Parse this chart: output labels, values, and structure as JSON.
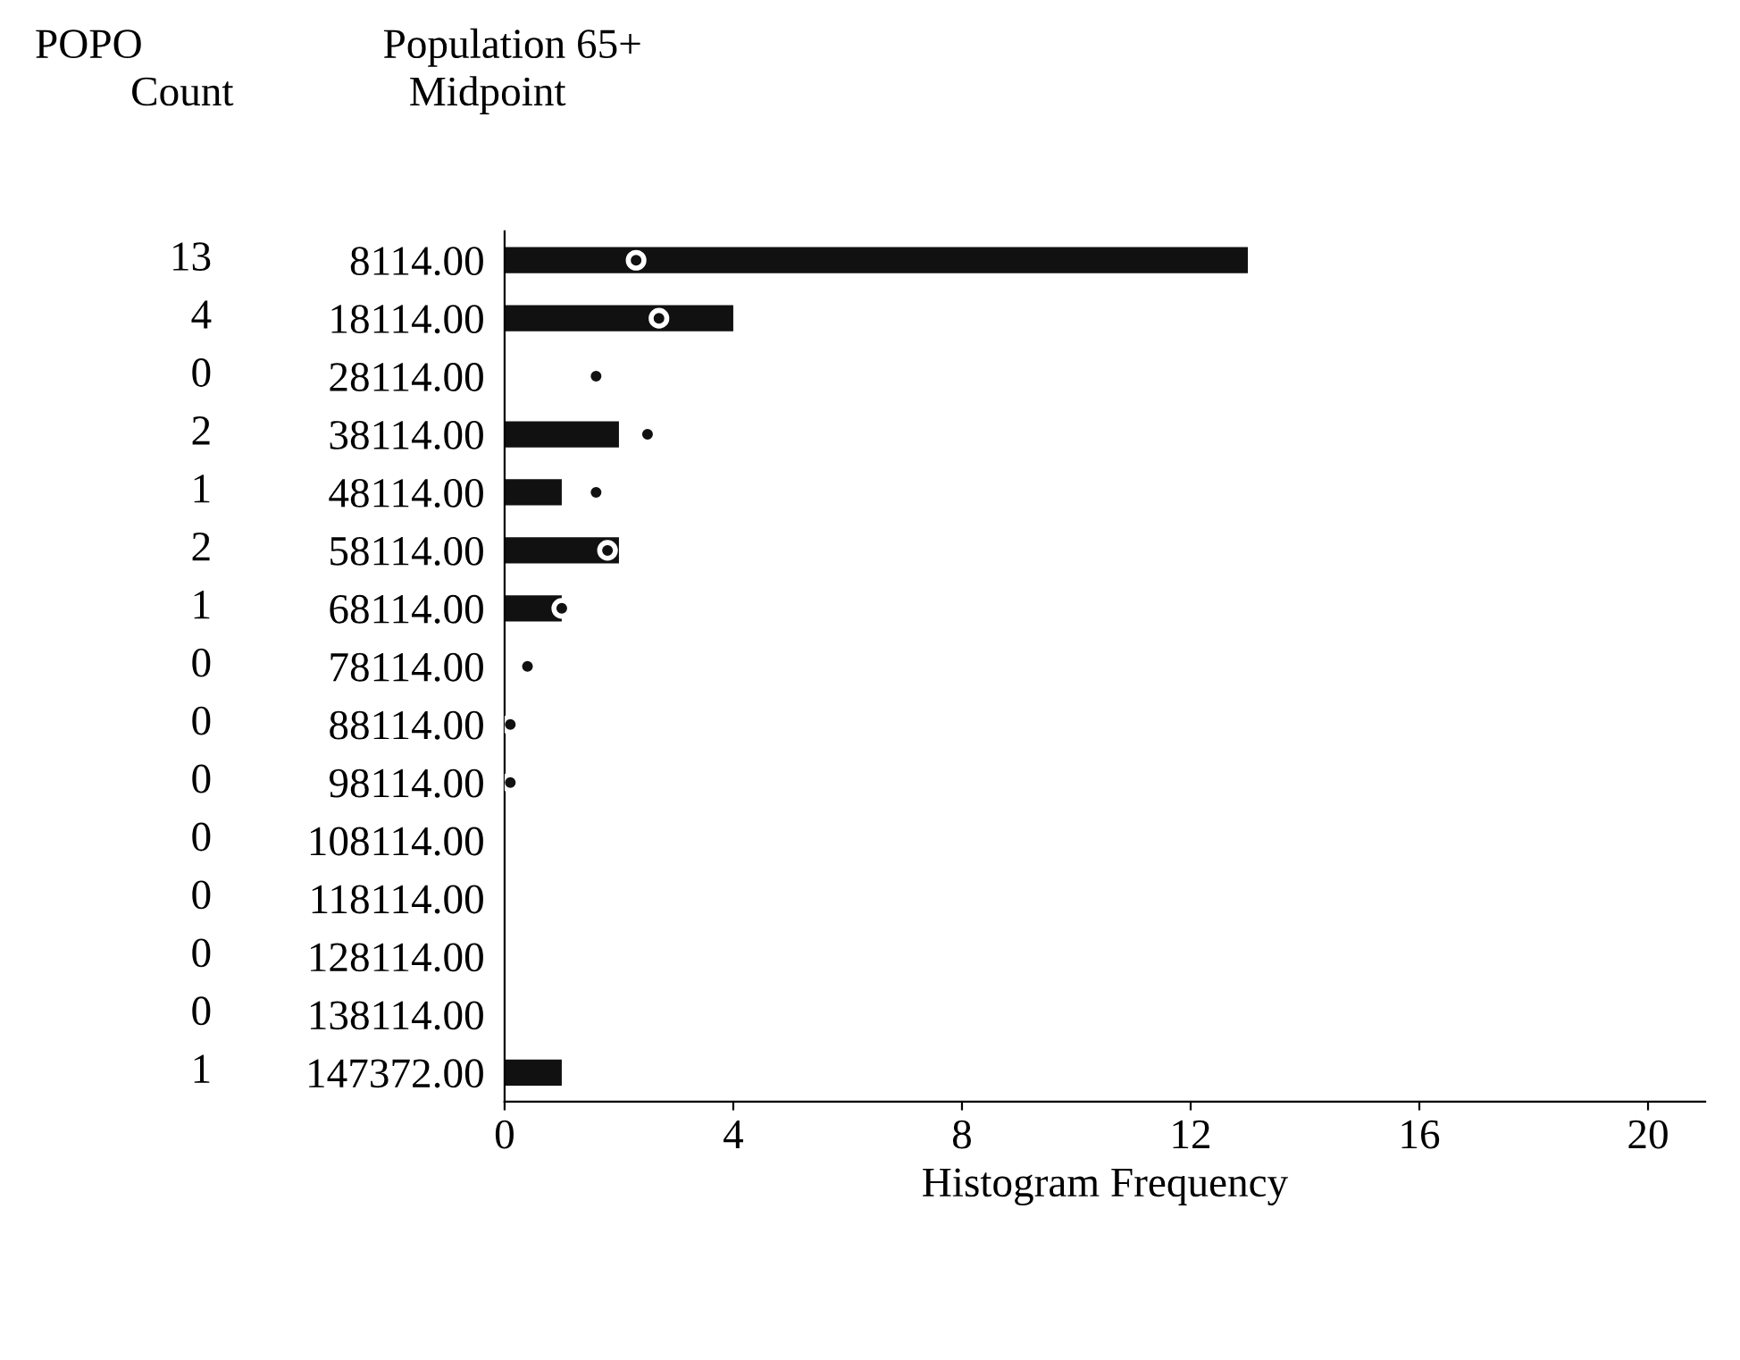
{
  "chart_data": {
    "type": "bar",
    "orientation": "horizontal",
    "xlabel": "Histogram Frequency",
    "annotations": [
      "POPO",
      "Count",
      "Population 65+",
      "Midpoint"
    ],
    "categories": [
      "8114.00",
      "18114.00",
      "28114.00",
      "38114.00",
      "48114.00",
      "58114.00",
      "68114.00",
      "78114.00",
      "88114.00",
      "98114.00",
      "108114.00",
      "118114.00",
      "128114.00",
      "138114.00",
      "147372.00"
    ],
    "series": [
      {
        "color": "#111111",
        "values": [
          13,
          4,
          0,
          2,
          1,
          2,
          1,
          0,
          0,
          0,
          0,
          0,
          0,
          0,
          1
        ],
        "value_labels": [
          "13",
          "4",
          "0",
          "2",
          "1",
          "2",
          "1",
          "0",
          "0",
          "0",
          "0",
          "0",
          "0",
          "0",
          "1"
        ]
      },
      {
        "type": "scatter",
        "color": "#111111",
        "values": [
          2.3,
          2.7,
          1.6,
          2.5,
          1.6,
          1.8,
          1.0,
          0.4,
          0.1,
          0.1,
          null,
          null,
          null,
          null,
          null
        ]
      }
    ],
    "xlim": [
      0,
      21
    ],
    "xticks": [
      0,
      4,
      8,
      12,
      16,
      20
    ],
    "grid": false,
    "legend": false,
    "marker": "circle"
  }
}
